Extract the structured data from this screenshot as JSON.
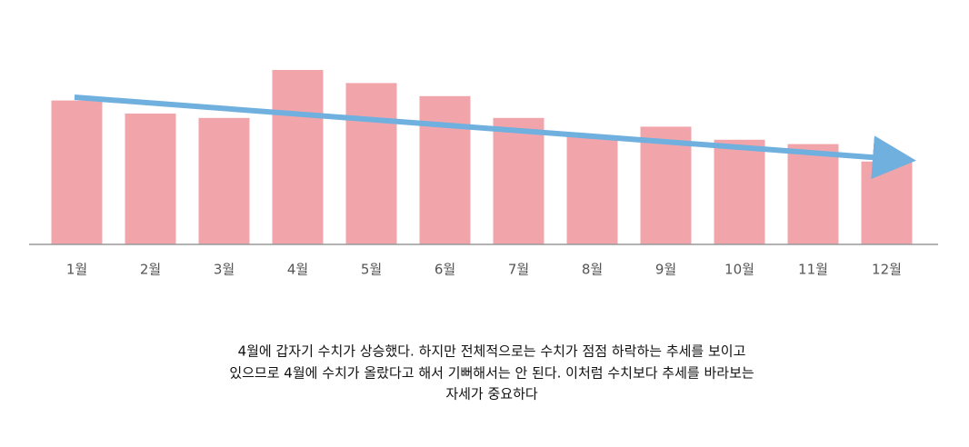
{
  "chart_data": {
    "type": "bar",
    "categories": [
      "1월",
      "2월",
      "3월",
      "4월",
      "5월",
      "6월",
      "7월",
      "8월",
      "9월",
      "10월",
      "11월",
      "12월"
    ],
    "values": [
      3.3,
      3.0,
      2.9,
      4.0,
      3.7,
      3.4,
      2.9,
      2.5,
      2.7,
      2.4,
      2.3,
      1.9
    ],
    "color": "#f1a5aa",
    "ylim": [
      0,
      4
    ]
  },
  "caption": [
    "4월에 갑자기 수치가 상승했다. 하지만 전체적으로는 수치가 점점 하락하는 추세를 보이고",
    "있으므로 4월에 수치가 올랐다고 해서 기뻐해서는 안 된다. 이처럼 수치보다 추세를 바라보는",
    "자세가 중요하다"
  ]
}
